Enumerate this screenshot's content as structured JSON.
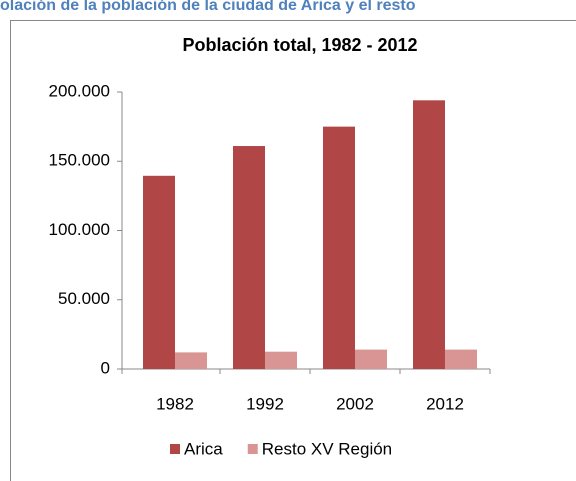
{
  "page_header": "olación de la población de la ciudad de Arica y el resto",
  "chart_data": {
    "type": "bar",
    "title": "Población total, 1982 - 2012",
    "categories": [
      "1982",
      "1992",
      "2002",
      "2012"
    ],
    "series": [
      {
        "name": "Arica",
        "color": "#b04746",
        "values": [
          139500,
          161000,
          175000,
          194000
        ]
      },
      {
        "name": "Resto XV Región",
        "color": "#d99594",
        "values": [
          12000,
          12500,
          14000,
          14000
        ]
      }
    ],
    "ylim": [
      0,
      200000
    ],
    "yticks": [
      {
        "value": 0,
        "label": "0"
      },
      {
        "value": 50000,
        "label": "50.000"
      },
      {
        "value": 100000,
        "label": "100.000"
      },
      {
        "value": 150000,
        "label": "150.000"
      },
      {
        "value": 200000,
        "label": "200.000"
      }
    ],
    "legend": "bottom"
  }
}
